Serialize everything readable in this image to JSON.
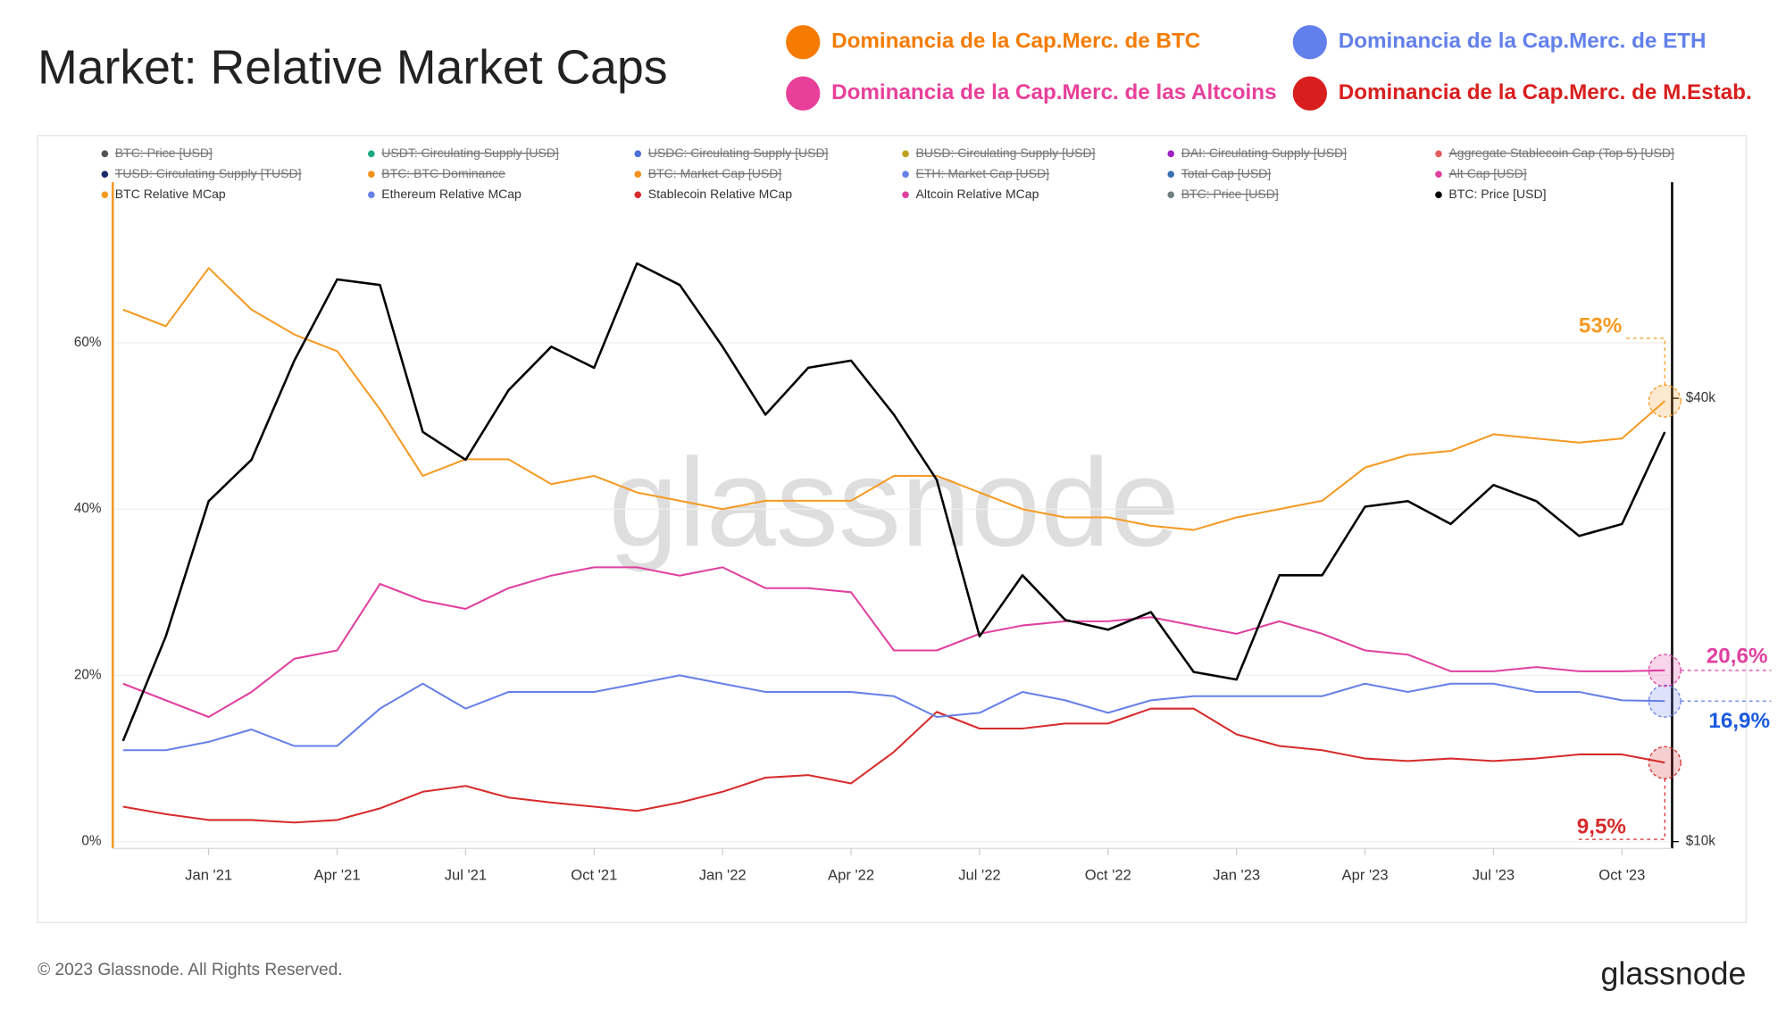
{
  "chart_data": {
    "type": "line",
    "title": "Market: Relative Market Caps",
    "header_legend": [
      {
        "label": "Dominancia de la Cap.Merc. de BTC",
        "color": "#f57c00"
      },
      {
        "label": "Dominancia de la Cap.Merc. de ETH",
        "color": "#6280ec"
      },
      {
        "label": "Dominancia de la Cap.Merc. de las Altcoins",
        "color": "#e8409a"
      },
      {
        "label": "Dominancia de la Cap.Merc. de M.Estab.",
        "color": "#d91e1e"
      }
    ],
    "hidden_legend": [
      {
        "label": "BTC: Price [USD]",
        "color": "#555555"
      },
      {
        "label": "USDT: Circulating Supply [USD]",
        "color": "#1aaa80"
      },
      {
        "label": "USDC: Circulating Supply [USD]",
        "color": "#4a6fd8"
      },
      {
        "label": "BUSD: Circulating Supply [USD]",
        "color": "#c0a020"
      },
      {
        "label": "DAI: Circulating Supply [USD]",
        "color": "#a020c0"
      },
      {
        "label": "Aggregate Stablecoin Cap (Top 5) [USD]",
        "color": "#e06060"
      },
      {
        "label": "TUSD: Circulating Supply [TUSD]",
        "color": "#1a2a6a"
      },
      {
        "label": "BTC: BTC Dominance",
        "color": "#f0901a"
      },
      {
        "label": "BTC: Market Cap [USD]",
        "color": "#f0901a"
      },
      {
        "label": "ETH: Market Cap [USD]",
        "color": "#6680e8"
      },
      {
        "label": "Total Cap [USD]",
        "color": "#3a70b0"
      },
      {
        "label": "Alt Cap [USD]",
        "color": "#e040a0"
      },
      {
        "label": "BTC: Price [USD]",
        "color": "#708080"
      }
    ],
    "watermark": "glassnode",
    "x": [
      "2020-11",
      "2020-12",
      "2021-01",
      "2021-02",
      "2021-03",
      "2021-04",
      "2021-05",
      "2021-06",
      "2021-07",
      "2021-08",
      "2021-09",
      "2021-10",
      "2021-11",
      "2021-12",
      "2022-01",
      "2022-02",
      "2022-03",
      "2022-04",
      "2022-05",
      "2022-06",
      "2022-07",
      "2022-08",
      "2022-09",
      "2022-10",
      "2022-11",
      "2022-12",
      "2023-01",
      "2023-02",
      "2023-03",
      "2023-04",
      "2023-05",
      "2023-06",
      "2023-07",
      "2023-08",
      "2023-09",
      "2023-10",
      "2023-11"
    ],
    "xticks": [
      {
        "value": "2021-01",
        "label": "Jan '21"
      },
      {
        "value": "2021-04",
        "label": "Apr '21"
      },
      {
        "value": "2021-07",
        "label": "Jul '21"
      },
      {
        "value": "2021-10",
        "label": "Oct '21"
      },
      {
        "value": "2022-01",
        "label": "Jan '22"
      },
      {
        "value": "2022-04",
        "label": "Apr '22"
      },
      {
        "value": "2022-07",
        "label": "Jul '22"
      },
      {
        "value": "2022-10",
        "label": "Oct '22"
      },
      {
        "value": "2023-01",
        "label": "Jan '23"
      },
      {
        "value": "2023-04",
        "label": "Apr '23"
      },
      {
        "value": "2023-07",
        "label": "Jul '23"
      },
      {
        "value": "2023-10",
        "label": "Oct '23"
      }
    ],
    "ylim": [
      0,
      80
    ],
    "yticks": [
      {
        "value": 0,
        "label": "0%"
      },
      {
        "value": 20,
        "label": "20%"
      },
      {
        "value": 40,
        "label": "40%"
      },
      {
        "value": 60,
        "label": "60%"
      }
    ],
    "y2lim": [
      10000,
      80000
    ],
    "y2ticks": [
      {
        "value": 10000,
        "label": "$10k"
      },
      {
        "value": 40000,
        "label": "$40k"
      }
    ],
    "y2log": true,
    "grid": true,
    "series": [
      {
        "name": "BTC Relative MCap",
        "color": "#f59a23",
        "values": [
          64,
          62,
          69,
          64,
          61,
          59,
          52,
          44,
          46,
          46,
          43,
          44,
          42,
          41,
          40,
          41,
          41,
          41,
          44,
          44,
          42,
          40,
          39,
          39,
          38,
          37.5,
          39,
          40,
          41,
          45,
          46.5,
          47,
          49,
          48.5,
          48,
          48.5,
          53
        ],
        "value_labels": [
          null,
          null,
          null,
          null,
          null,
          null,
          null,
          null,
          null,
          null,
          null,
          null,
          null,
          null,
          null,
          null,
          null,
          null,
          null,
          null,
          null,
          null,
          null,
          null,
          null,
          null,
          null,
          null,
          null,
          null,
          null,
          null,
          null,
          null,
          null,
          null,
          "53%"
        ]
      },
      {
        "name": "Ethereum Relative MCap",
        "color": "#6680e8",
        "values": [
          11,
          11,
          12,
          13.5,
          11.5,
          11.5,
          16,
          19,
          16,
          18,
          18,
          18,
          19,
          20,
          19,
          18,
          18,
          18,
          17.5,
          15,
          15.5,
          18,
          17,
          15.5,
          17,
          17.5,
          17.5,
          17.5,
          17.5,
          19,
          18,
          19,
          19,
          18,
          18,
          17,
          16.9
        ],
        "value_labels": [
          null,
          null,
          null,
          null,
          null,
          null,
          null,
          null,
          null,
          null,
          null,
          null,
          null,
          null,
          null,
          null,
          null,
          null,
          null,
          null,
          null,
          null,
          null,
          null,
          null,
          null,
          null,
          null,
          null,
          null,
          null,
          null,
          null,
          null,
          null,
          null,
          "16,9%"
        ]
      },
      {
        "name": "Stablecoin Relative MCap",
        "color": "#d62b2b",
        "values": [
          4.2,
          3.3,
          2.6,
          2.6,
          2.3,
          2.6,
          4,
          6,
          6.7,
          5.3,
          4.7,
          4.2,
          3.7,
          4.7,
          6,
          7.7,
          8,
          7,
          10.8,
          15.6,
          13.6,
          13.6,
          14.2,
          14.2,
          16,
          16,
          12.9,
          11.5,
          11,
          10,
          9.7,
          10,
          9.7,
          10,
          10.5,
          10.5,
          9.5
        ],
        "value_labels": [
          null,
          null,
          null,
          null,
          null,
          null,
          null,
          null,
          null,
          null,
          null,
          null,
          null,
          null,
          null,
          null,
          null,
          null,
          null,
          null,
          null,
          null,
          null,
          null,
          null,
          null,
          null,
          null,
          null,
          null,
          null,
          null,
          null,
          null,
          null,
          null,
          "9,5%"
        ]
      },
      {
        "name": "Altcoin Relative MCap",
        "color": "#e040a0",
        "values": [
          19,
          17,
          15,
          18,
          22,
          23,
          31,
          29,
          28,
          30.5,
          32,
          33,
          33,
          32,
          33,
          30.5,
          30.5,
          30,
          23,
          23,
          25,
          26,
          26.5,
          26.5,
          27,
          26,
          25,
          26.5,
          25,
          23,
          22.5,
          20.5,
          20.5,
          21,
          20.5,
          20.5,
          20.6
        ],
        "value_labels": [
          null,
          null,
          null,
          null,
          null,
          null,
          null,
          null,
          null,
          null,
          null,
          null,
          null,
          null,
          null,
          null,
          null,
          null,
          null,
          null,
          null,
          null,
          null,
          null,
          null,
          null,
          null,
          null,
          null,
          null,
          null,
          null,
          null,
          null,
          null,
          null,
          "20,6%"
        ]
      },
      {
        "name": "BTC: Price [USD]",
        "color": "#000000",
        "axis": "y2",
        "values": [
          13700,
          19000,
          29000,
          33000,
          45000,
          58000,
          57000,
          36000,
          33000,
          41000,
          47000,
          44000,
          61000,
          57000,
          47000,
          38000,
          44000,
          45000,
          38000,
          31000,
          19000,
          23000,
          20000,
          19400,
          20500,
          17000,
          16600,
          23000,
          23000,
          28500,
          29000,
          27000,
          30500,
          29000,
          26000,
          27000,
          36000
        ]
      }
    ]
  },
  "footer": {
    "copyright": "© 2023 Glassnode. All Rights Reserved.",
    "logo": "glassnode"
  }
}
